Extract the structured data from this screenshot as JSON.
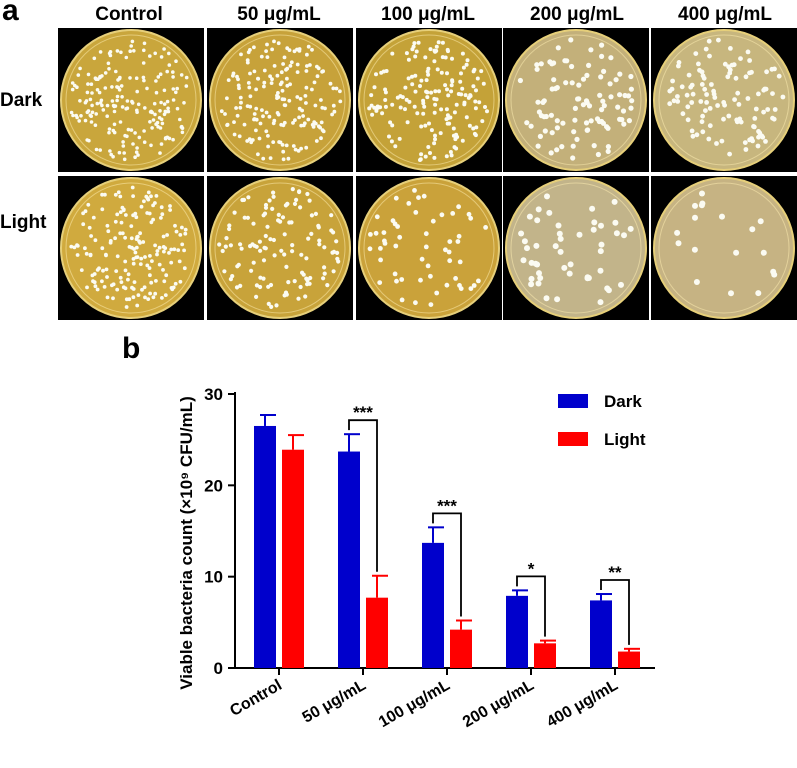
{
  "panels": {
    "a": "a",
    "b": "b"
  },
  "plates": {
    "columns": [
      "Control",
      "50 μg/mL",
      "100 μg/mL",
      "200 μg/mL",
      "400 μg/mL"
    ],
    "rows": [
      "Dark",
      "Light"
    ]
  },
  "chart_data": {
    "type": "bar",
    "categories": [
      "Control",
      "50 μg/mL",
      "100 μg/mL",
      "200 μg/mL",
      "400 μg/mL"
    ],
    "series": [
      {
        "name": "Dark",
        "color": "#0000cc",
        "values": [
          26.5,
          23.7,
          13.7,
          7.9,
          7.4
        ],
        "errors": [
          1.2,
          1.9,
          1.7,
          0.6,
          0.7
        ]
      },
      {
        "name": "Light",
        "color": "#ff0000",
        "values": [
          23.9,
          7.7,
          4.2,
          2.7,
          1.8
        ],
        "errors": [
          1.6,
          2.4,
          1.0,
          0.3,
          0.3
        ]
      }
    ],
    "ylabel": "Viable bacteria count (×10⁹ CFU/mL)",
    "ylim": [
      0,
      30
    ],
    "yticks": [
      "0",
      "10",
      "20",
      "30"
    ],
    "significance": [
      {
        "category": "50 μg/mL",
        "label": "***"
      },
      {
        "category": "100 μg/mL",
        "label": "***"
      },
      {
        "category": "200 μg/mL",
        "label": "*"
      },
      {
        "category": "400 μg/mL",
        "label": "**"
      }
    ],
    "legend_position": "top-right"
  }
}
